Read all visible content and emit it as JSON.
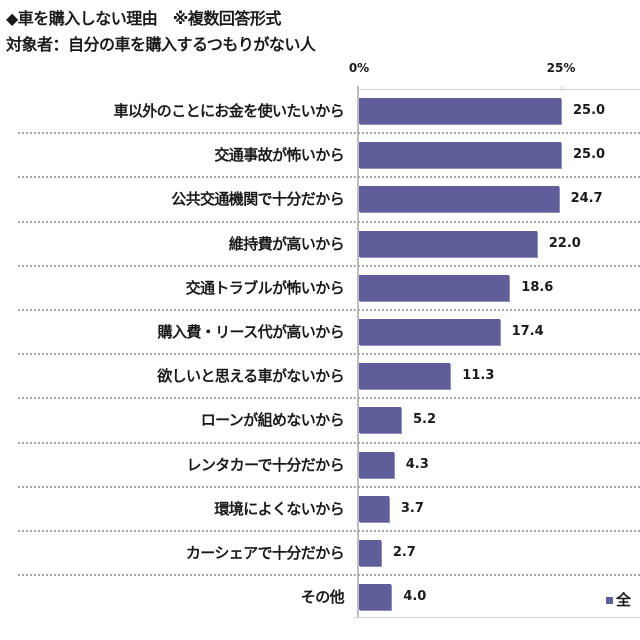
{
  "header": {
    "title": "◆車を購入しない理由　※複数回答形式",
    "subtitle": "対象者：自分の車を購入するつもりがない人"
  },
  "axis": {
    "ticks": [
      {
        "label": "0%",
        "value": 0
      },
      {
        "label": "25%",
        "value": 25
      }
    ]
  },
  "legend": {
    "label": "全",
    "color": "#5f5e9a"
  },
  "chart_data": {
    "type": "bar",
    "orientation": "horizontal",
    "title": "◆車を購入しない理由　※複数回答形式",
    "subtitle": "対象者：自分の車を購入するつもりがない人",
    "xlabel": "",
    "ylabel": "",
    "xlim": [
      0,
      35
    ],
    "x_ticks": [
      "0%",
      "25%"
    ],
    "grid": true,
    "legend_position": "bottom-right",
    "bar_color": "#5f5e9a",
    "categories": [
      "車以外のことにお金を使いたいから",
      "交通事故が怖いから",
      "公共交通機関で十分だから",
      "維持費が高いから",
      "交通トラブルが怖いから",
      "購入費・リース代が高いから",
      "欲しいと思える車がないから",
      "ローンが組めないから",
      "レンタカーで十分だから",
      "環境によくないから",
      "カーシェアで十分だから",
      "その他"
    ],
    "series": [
      {
        "name": "全",
        "values": [
          25.0,
          25.0,
          24.7,
          22.0,
          18.6,
          17.4,
          11.3,
          5.2,
          4.3,
          3.7,
          2.7,
          4.0
        ],
        "labels": [
          "25.0",
          "25.0",
          "24.7",
          "22.0",
          "18.6",
          "17.4",
          "11.3",
          "5.2",
          "4.3",
          "3.7",
          "2.7",
          "4.0"
        ]
      }
    ]
  }
}
